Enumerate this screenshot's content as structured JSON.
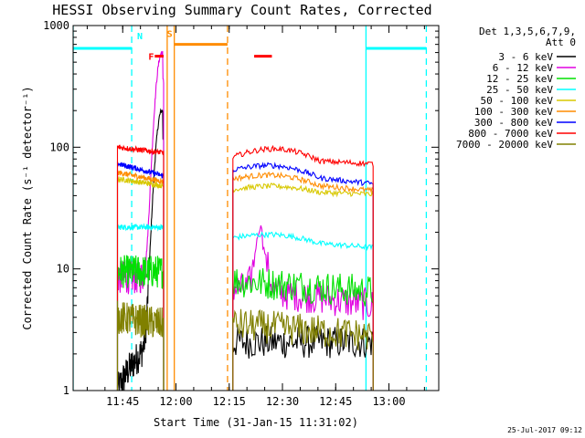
{
  "chart_data": {
    "type": "line",
    "title": "HESSI Observing Summary Count Rates, Corrected",
    "xlabel": "Start Time (31-Jan-15 11:31:02)",
    "ylabel": "Corrected Count Rate (s⁻¹ detector⁻¹)",
    "y_scale": "log",
    "ylim": [
      1,
      1000
    ],
    "xlim_minutes_from_start": [
      0,
      103
    ],
    "x_ticks": [
      "11:45",
      "12:00",
      "12:15",
      "12:30",
      "12:45",
      "13:00"
    ],
    "y_ticks": [
      "1",
      "10",
      "100",
      "1000"
    ],
    "legend_title": [
      "Det 1,3,5,6,7,9,",
      "Att 0"
    ],
    "legend_placement": "right",
    "grid": false,
    "series": [
      {
        "name": "3 - 6 keV",
        "color": "#000000",
        "segments": [
          {
            "t0": 12.5,
            "t1": 25.5,
            "v0": 1.0,
            "v1": 3.0,
            "spike": {
              "t": 25.0,
              "v": 200
            }
          },
          {
            "t0": 45.0,
            "t1": 84.5,
            "v0": 2.5,
            "v1": 2.5
          }
        ]
      },
      {
        "name": "6 - 12 keV",
        "color": "#e000e0",
        "segments": [
          {
            "t0": 12.5,
            "t1": 25.5,
            "v0": 8.5,
            "v1": 8.5,
            "spike": {
              "t": 25.0,
              "v": 600
            }
          },
          {
            "t0": 45.0,
            "t1": 84.5,
            "v0": 7.0,
            "v1": 5.0,
            "spike": {
              "t": 53.0,
              "v": 22
            }
          }
        ]
      },
      {
        "name": "12 - 25 keV",
        "color": "#00e000",
        "segments": [
          {
            "t0": 12.5,
            "t1": 25.5,
            "v0": 9.5,
            "v1": 9.5
          },
          {
            "t0": 45.0,
            "t1": 84.5,
            "v0": 8.0,
            "v1": 6.5
          }
        ]
      },
      {
        "name": "25 - 50 keV",
        "color": "#00ffff",
        "segments": [
          {
            "t0": 12.5,
            "t1": 25.5,
            "v0": 22,
            "v1": 22
          },
          {
            "t0": 45.0,
            "t1": 84.5,
            "v0": 18,
            "v1": 15,
            "peak": 20
          }
        ]
      },
      {
        "name": "50 - 100 keV",
        "color": "#d8c800",
        "segments": [
          {
            "t0": 12.5,
            "t1": 25.5,
            "v0": 55,
            "v1": 48
          },
          {
            "t0": 45.0,
            "t1": 84.5,
            "v0": 45,
            "v1": 41,
            "peak": 49
          }
        ]
      },
      {
        "name": "100 - 300 keV",
        "color": "#ff8c00",
        "segments": [
          {
            "t0": 12.5,
            "t1": 25.5,
            "v0": 62,
            "v1": 52
          },
          {
            "t0": 45.0,
            "t1": 84.5,
            "v0": 55,
            "v1": 44,
            "peak": 62
          }
        ]
      },
      {
        "name": "300 - 800 keV",
        "color": "#0000ff",
        "segments": [
          {
            "t0": 12.5,
            "t1": 25.5,
            "v0": 73,
            "v1": 58
          },
          {
            "t0": 45.0,
            "t1": 84.5,
            "v0": 65,
            "v1": 50,
            "peak": 75
          }
        ]
      },
      {
        "name": "800 - 7000 keV",
        "color": "#ff0000",
        "segments": [
          {
            "t0": 12.5,
            "t1": 25.5,
            "v0": 100,
            "v1": 90
          },
          {
            "t0": 45.0,
            "t1": 84.5,
            "v0": 83,
            "v1": 73,
            "peak": 100
          }
        ]
      },
      {
        "name": "7000 - 20000 keV",
        "color": "#808000",
        "segments": [
          {
            "t0": 12.5,
            "t1": 25.5,
            "v0": 4.0,
            "v1": 3.5
          },
          {
            "t0": 45.0,
            "t1": 84.5,
            "v0": 3.5,
            "v1": 2.8
          }
        ]
      }
    ],
    "vertical_markers": [
      {
        "t": 0.0,
        "color": "#00ffff",
        "style": "solid"
      },
      {
        "t": 16.5,
        "color": "#00ffff",
        "style": "dashed"
      },
      {
        "t": 26.5,
        "color": "#ff8c00",
        "style": "solid"
      },
      {
        "t": 28.5,
        "color": "#ff8c00",
        "style": "solid"
      },
      {
        "t": 43.5,
        "color": "#ff8c00",
        "style": "dashed"
      },
      {
        "t": 82.5,
        "color": "#00ffff",
        "style": "solid"
      },
      {
        "t": 99.5,
        "color": "#00ffff",
        "style": "dashed"
      }
    ],
    "horizontal_bars": [
      {
        "t0": 0.0,
        "t1": 16.5,
        "v": 650,
        "color": "#00ffff",
        "label": "N"
      },
      {
        "t0": 82.5,
        "t1": 99.5,
        "v": 650,
        "color": "#00ffff"
      },
      {
        "t0": 28.5,
        "t1": 43.5,
        "v": 700,
        "color": "#ff8c00",
        "label": "S"
      },
      {
        "t0": 23.0,
        "t1": 25.5,
        "v": 560,
        "color": "#ff0000",
        "label": "F"
      },
      {
        "t0": 51.0,
        "t1": 56.0,
        "v": 560,
        "color": "#ff0000"
      }
    ]
  },
  "footer": {
    "timestamp": "25-Jul-2017 09:12"
  }
}
